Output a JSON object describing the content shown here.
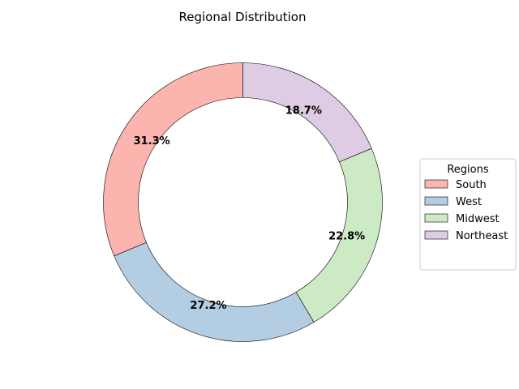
{
  "chart_data": {
    "type": "pie",
    "variant": "donut",
    "title": "Regional Distribution",
    "categories": [
      "South",
      "West",
      "Midwest",
      "Northeast"
    ],
    "values": [
      31.3,
      27.2,
      22.8,
      18.7
    ],
    "labels": [
      "31.3%",
      "27.2%",
      "22.8%",
      "18.7%"
    ],
    "colors": [
      "#fbb4ae",
      "#b3cde3",
      "#ccebc5",
      "#decbe4"
    ],
    "start_angle_deg": 90,
    "direction": "counterclockwise",
    "legend": {
      "title": "Regions",
      "placement": "center-right",
      "entries": [
        "South",
        "West",
        "Midwest",
        "Northeast"
      ]
    }
  }
}
